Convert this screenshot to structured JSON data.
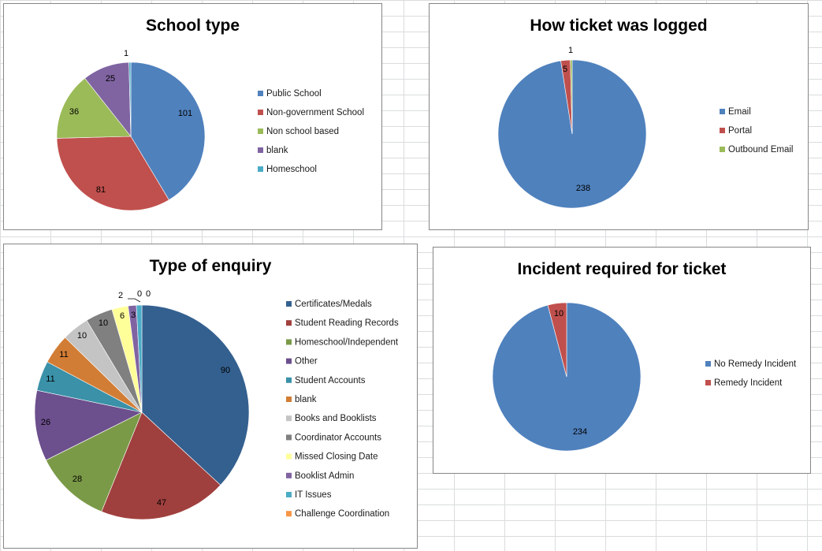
{
  "chart_data": [
    {
      "type": "pie",
      "title": "School type",
      "categories": [
        "Public School",
        "Non-government School",
        "Non school based",
        "blank",
        "Homeschool"
      ],
      "values": [
        101,
        81,
        36,
        25,
        1
      ],
      "colors": [
        "#4f81bd",
        "#c0504d",
        "#9bbb59",
        "#8064a2",
        "#4bacc6"
      ],
      "legend": "right"
    },
    {
      "type": "pie",
      "title": "How ticket was logged",
      "categories": [
        "Email",
        "Portal",
        "Outbound Email"
      ],
      "values": [
        238,
        5,
        1
      ],
      "colors": [
        "#4f81bd",
        "#c0504d",
        "#9bbb59"
      ],
      "legend": "right"
    },
    {
      "type": "pie",
      "title": "Type of enquiry",
      "categories": [
        "Certificates/Medals",
        "Student Reading Records",
        "Homeschool/Independent",
        "Other",
        "Student Accounts",
        "blank",
        "Books and Booklists",
        "Coordinator Accounts",
        "Missed Closing Date",
        "Booklist Admin",
        "IT Issues",
        "Challenge Coordination"
      ],
      "values": [
        90,
        47,
        28,
        26,
        11,
        11,
        10,
        10,
        6,
        3,
        2,
        0
      ],
      "colors": [
        "#34608f",
        "#a0403e",
        "#7a9a47",
        "#6c4f8d",
        "#3a91a8",
        "#d27d35",
        "#c4c4c4",
        "#808080",
        "#ffff99",
        "#8064a2",
        "#4bacc6",
        "#f79646"
      ],
      "legend": "right"
    },
    {
      "type": "pie",
      "title": "Incident required for ticket",
      "categories": [
        "No Remedy Incident",
        "Remedy Incident"
      ],
      "values": [
        234,
        10
      ],
      "colors": [
        "#4f81bd",
        "#c0504d"
      ],
      "legend": "right"
    }
  ]
}
